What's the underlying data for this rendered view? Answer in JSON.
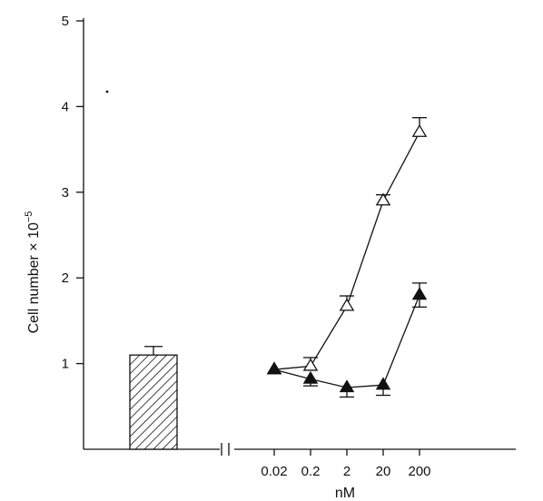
{
  "chart_data": {
    "type": "line",
    "title": "",
    "ylabel": "Cell number × 10",
    "ylabel_exponent": "−5",
    "xlabel": "nM",
    "ylim": [
      0,
      5
    ],
    "y_ticks": [
      "1",
      "2",
      "3",
      "4",
      "5"
    ],
    "x_scale": "log",
    "x_categories": [
      "0.02",
      "0.2",
      "2",
      "20",
      "200"
    ],
    "x": [
      0.02,
      0.2,
      2,
      20,
      200
    ],
    "axis_break": true,
    "control_bar": {
      "value": 1.1,
      "error": 0.1,
      "pattern": "hatched"
    },
    "series": [
      {
        "marker": "open-triangle",
        "values": [
          0.93,
          0.97,
          1.67,
          2.9,
          3.7
        ],
        "errors": [
          0.03,
          0.1,
          0.12,
          0.07,
          0.17
        ]
      },
      {
        "marker": "filled-triangle",
        "values": [
          0.93,
          0.82,
          0.72,
          0.75,
          1.8
        ],
        "errors": [
          0.03,
          0.08,
          0.11,
          0.12,
          0.14
        ]
      }
    ],
    "colors": {
      "ink": "#111111",
      "background": "#ffffff"
    }
  }
}
